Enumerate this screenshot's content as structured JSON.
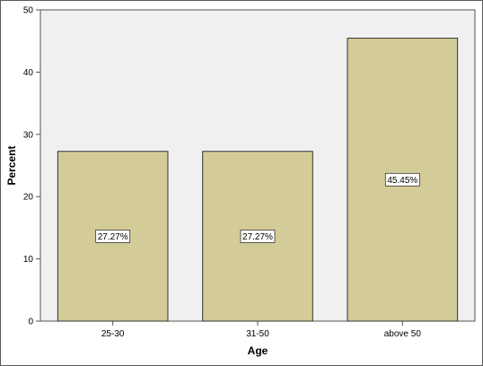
{
  "chart_data": {
    "type": "bar",
    "categories": [
      "25-30",
      "31-50",
      "above 50"
    ],
    "values": [
      27.27,
      27.27,
      45.45
    ],
    "data_labels": [
      "27.27%",
      "27.27%",
      "45.45%"
    ],
    "xlabel": "Age",
    "ylabel": "Percent",
    "ylim": [
      0,
      50
    ],
    "yticks": [
      0,
      10,
      20,
      30,
      40,
      50
    ],
    "grid": false,
    "colors": {
      "bar_fill": "#d3cc98",
      "bar_stroke": "#333333",
      "plot_background": "#f0f0f0",
      "axis": "#555555"
    }
  }
}
